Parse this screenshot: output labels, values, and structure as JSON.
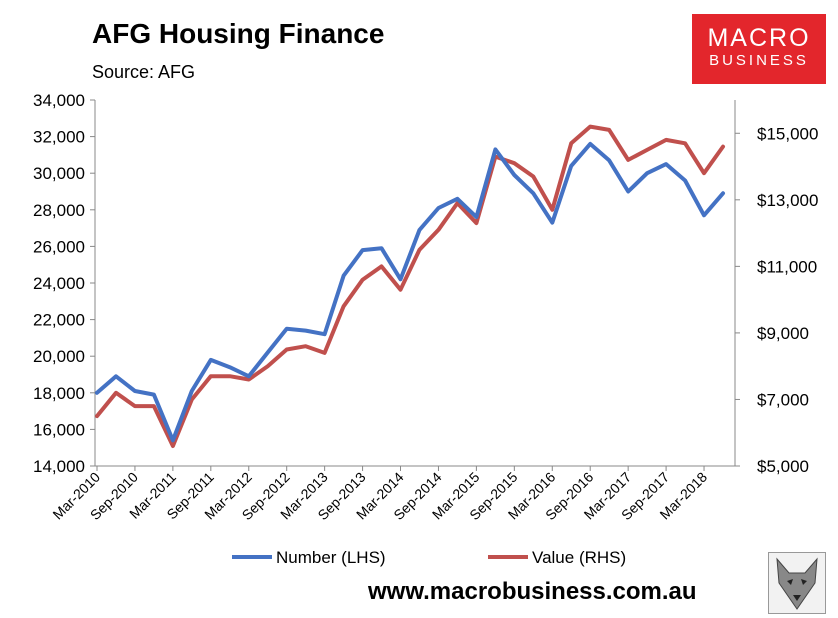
{
  "header": {
    "title": "AFG Housing Finance",
    "source": "Source: AFG"
  },
  "logo": {
    "line1": "MACRO",
    "line2": "BUSINESS"
  },
  "footer": {
    "url": "www.macrobusiness.com.au"
  },
  "chart_data": {
    "type": "line",
    "title": "AFG Housing Finance",
    "x": [
      "Mar-2010",
      "Jun-2010",
      "Sep-2010",
      "Dec-2010",
      "Mar-2011",
      "Jun-2011",
      "Sep-2011",
      "Dec-2011",
      "Mar-2012",
      "Jun-2012",
      "Sep-2012",
      "Dec-2012",
      "Mar-2013",
      "Jun-2013",
      "Sep-2013",
      "Dec-2013",
      "Mar-2014",
      "Jun-2014",
      "Sep-2014",
      "Dec-2014",
      "Mar-2015",
      "Jun-2015",
      "Sep-2015",
      "Dec-2015",
      "Mar-2016",
      "Jun-2016",
      "Sep-2016",
      "Dec-2016",
      "Mar-2017",
      "Jun-2017",
      "Sep-2017",
      "Dec-2017",
      "Mar-2018",
      "Jun-2018"
    ],
    "x_tick_labels": [
      "Mar-2010",
      "Sep-2010",
      "Mar-2011",
      "Sep-2011",
      "Mar-2012",
      "Sep-2012",
      "Mar-2013",
      "Sep-2013",
      "Mar-2014",
      "Sep-2014",
      "Mar-2015",
      "Sep-2015",
      "Mar-2016",
      "Sep-2016",
      "Mar-2017",
      "Sep-2017",
      "Mar-2018"
    ],
    "y_left": {
      "min": 14000,
      "max": 34000,
      "ticks": [
        "14,000",
        "16,000",
        "18,000",
        "20,000",
        "22,000",
        "24,000",
        "26,000",
        "28,000",
        "30,000",
        "32,000",
        "34,000"
      ]
    },
    "y_right": {
      "min": 5000,
      "max": 16000,
      "ticks": [
        "$5,000",
        "$7,000",
        "$9,000",
        "$11,000",
        "$13,000",
        "$15,000"
      ],
      "tick_values": [
        5000,
        7000,
        9000,
        11000,
        13000,
        15000
      ]
    },
    "grid": false,
    "legend_position": "bottom",
    "series": [
      {
        "name": "Number (LHS)",
        "axis": "left",
        "color": "#4472c4",
        "values": [
          18000,
          18900,
          18100,
          17900,
          15400,
          18100,
          19800,
          19400,
          18900,
          20200,
          21500,
          21400,
          21200,
          24400,
          25800,
          25900,
          24200,
          26900,
          28100,
          28600,
          27600,
          31300,
          29900,
          28900,
          27300,
          30400,
          31600,
          30700,
          29000,
          30000,
          30500,
          29600,
          27700,
          28900
        ]
      },
      {
        "name": "Value (RHS)",
        "axis": "right",
        "color": "#c0504d",
        "values": [
          6500,
          7200,
          6800,
          6800,
          5600,
          7000,
          7700,
          7700,
          7600,
          8000,
          8500,
          8600,
          8400,
          9800,
          10600,
          11000,
          10300,
          11500,
          12100,
          12900,
          12300,
          14300,
          14100,
          13700,
          12700,
          14700,
          15200,
          15100,
          14200,
          14500,
          14800,
          14700,
          13800,
          14600
        ]
      }
    ]
  }
}
